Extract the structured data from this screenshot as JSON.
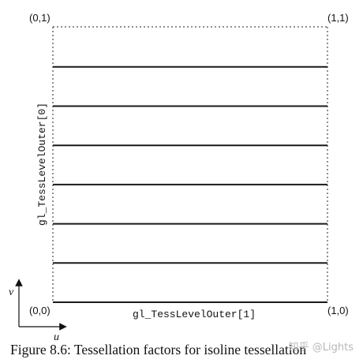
{
  "diagram": {
    "corners": {
      "top_left": "(0,1)",
      "top_right": "(1,1)",
      "bottom_left": "(0,0)",
      "bottom_right": "(1,0)"
    },
    "labels": {
      "vertical": "gl_TessLevelOuter[0]",
      "horizontal": "gl_TessLevelOuter[1]"
    },
    "axes": {
      "u": "u",
      "v": "v"
    },
    "isoline_count": 7,
    "caption": "Figure 8.6: Tessellation factors for isoline tessellation",
    "watermark": "知乎 @Lights"
  }
}
